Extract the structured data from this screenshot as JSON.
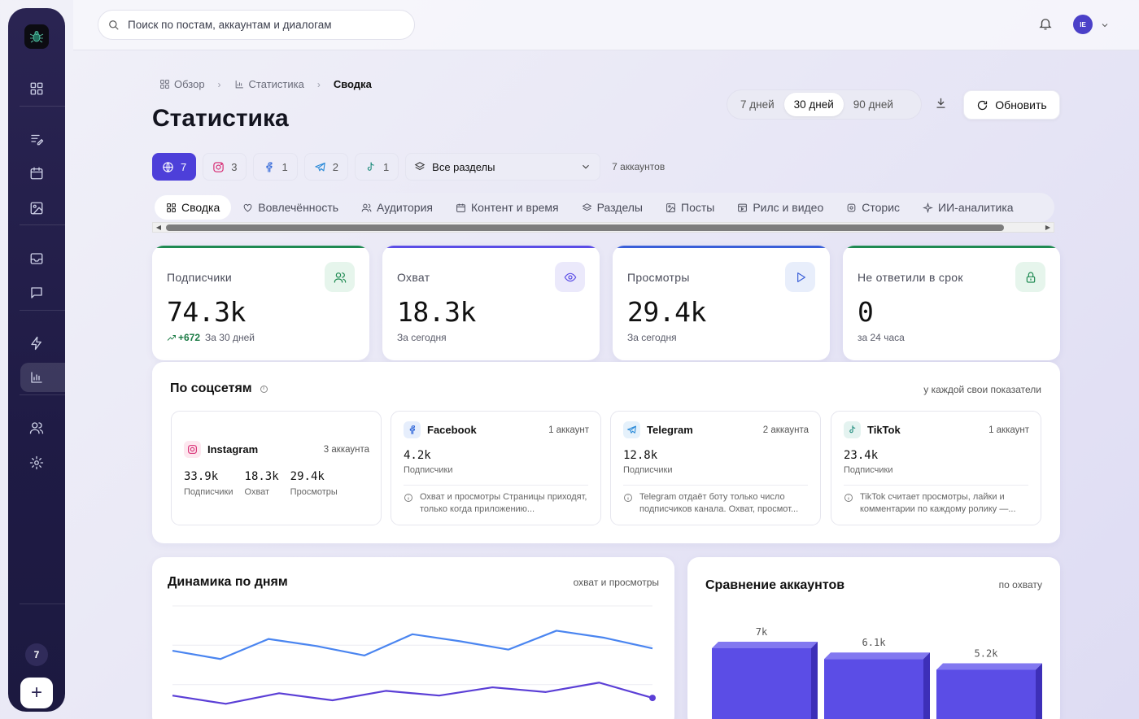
{
  "sidebar": {
    "badge_count": "7",
    "add_label": "+",
    "items": [
      {
        "name": "dashboard-icon"
      },
      {
        "name": "posts-icon"
      },
      {
        "name": "calendar-icon"
      },
      {
        "name": "media-icon"
      },
      {
        "name": "inbox-icon"
      },
      {
        "name": "chat-icon"
      },
      {
        "name": "automation-icon"
      },
      {
        "name": "statistics-icon",
        "active": true
      },
      {
        "name": "users-icon"
      },
      {
        "name": "settings-icon"
      }
    ]
  },
  "topbar": {
    "search_placeholder": "Поиск по постам, аккаунтам и диалогам",
    "avatar_initials": "IE"
  },
  "breadcrumb": {
    "items": [
      "Обзор",
      "Статистика"
    ],
    "current": "Сводка"
  },
  "page_title": "Статистика",
  "periods": {
    "options": [
      "7 дней",
      "30 дней",
      "90 дней"
    ],
    "selected": "30 дней"
  },
  "refresh_label": "Обновить",
  "filters": {
    "chips": [
      {
        "icon": "globe-icon",
        "count": "7",
        "active": true
      },
      {
        "icon": "instagram-icon",
        "count": "3"
      },
      {
        "icon": "facebook-icon",
        "count": "1"
      },
      {
        "icon": "telegram-icon",
        "count": "2"
      },
      {
        "icon": "tiktok-icon",
        "count": "1"
      }
    ],
    "section_select": "Все разделы",
    "accounts_count": "7 аккаунтов"
  },
  "tabs": [
    "Сводка",
    "Вовлечённость",
    "Аудитория",
    "Контент и время",
    "Разделы",
    "Посты",
    "Рилс и видео",
    "Сторис",
    "ИИ-аналитика"
  ],
  "tabs_active": "Сводка",
  "kpis": [
    {
      "label": "Подписчики",
      "value": "74.3k",
      "delta": "+672",
      "sub": "За 30 дней",
      "accent": "#1f8a52",
      "icon": "users-icon"
    },
    {
      "label": "Охват",
      "value": "18.3k",
      "sub": "За сегодня",
      "accent": "#5b4de6",
      "icon": "eye-icon"
    },
    {
      "label": "Просмотры",
      "value": "29.4k",
      "sub": "За сегодня",
      "accent": "#3a5fd8",
      "icon": "play-icon"
    },
    {
      "label": "Не ответили в срок",
      "value": "0",
      "sub": "за 24 часа",
      "accent": "#1f8a52",
      "icon": "lock-icon"
    }
  ],
  "networks_panel": {
    "title": "По соцсетям",
    "note": "у каждой свои показатели",
    "instagram": {
      "name": "Instagram",
      "count": "3 аккаунта",
      "stats": [
        {
          "value": "33.9k",
          "label": "Подписчики"
        },
        {
          "value": "18.3k",
          "label": "Охват"
        },
        {
          "value": "29.4k",
          "label": "Просмотры"
        }
      ]
    },
    "facebook": {
      "name": "Facebook",
      "count": "1 аккаунт",
      "value": "4.2k",
      "label": "Подписчики",
      "note": "Охват и просмотры Страницы приходят, только когда приложению..."
    },
    "telegram": {
      "name": "Telegram",
      "count": "2 аккаунта",
      "value": "12.8k",
      "label": "Подписчики",
      "note": "Telegram отдаёт боту только число подписчиков канала. Охват, просмот..."
    },
    "tiktok": {
      "name": "TikTok",
      "count": "1 аккаунт",
      "value": "23.4k",
      "label": "Подписчики",
      "note": "TikTok считает просмотры, лайки и комментарии по каждому ролику —..."
    }
  },
  "dynamics_card": {
    "title": "Динамика по дням",
    "note": "охват и просмотры"
  },
  "comparison_card": {
    "title": "Сравнение аккаунтов",
    "note": "по охвату"
  },
  "chart_data": [
    {
      "type": "line",
      "title": "Динамика по дням",
      "series": [
        {
          "values": [
            62,
            55,
            72,
            66,
            58,
            76,
            70,
            63,
            79,
            73,
            64
          ],
          "color": "#4a85f0"
        },
        {
          "values": [
            24,
            17,
            26,
            20,
            28,
            24,
            31,
            27,
            35,
            22
          ],
          "color": "#5b3fd6"
        }
      ],
      "ylim": [
        0,
        100
      ],
      "grid": true
    },
    {
      "type": "bar",
      "title": "Сравнение аккаунтов",
      "values": [
        7.0,
        6.1,
        5.2
      ],
      "data_labels": [
        "7k",
        "6.1k",
        "5.2k"
      ],
      "color": "#5b4de6"
    }
  ]
}
